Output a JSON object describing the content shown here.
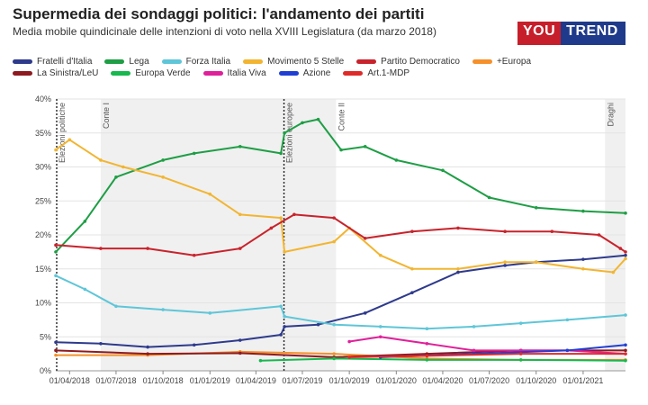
{
  "header": {
    "title": "Supermedia dei sondaggi politici: l'andamento dei partiti",
    "subtitle": "Media mobile quindicinale delle intenzioni di voto nella XVIII Legislatura (da marzo 2018)",
    "logo_you": "YOU",
    "logo_trend": "TREND"
  },
  "chart_data": {
    "type": "line",
    "xlabel": "",
    "ylabel": "",
    "ylim": [
      0,
      40
    ],
    "xlim": [
      "2018-03-05",
      "2021-03-25"
    ],
    "grid": true,
    "legend": "top",
    "y_ticks": [
      "0%",
      "5%",
      "10%",
      "15%",
      "20%",
      "25%",
      "30%",
      "35%",
      "40%"
    ],
    "x_ticks": [
      {
        "label": "01/04/2018",
        "date": "2018-04-01"
      },
      {
        "label": "01/07/2018",
        "date": "2018-07-01"
      },
      {
        "label": "01/10/2018",
        "date": "2018-10-01"
      },
      {
        "label": "01/01/2019",
        "date": "2019-01-01"
      },
      {
        "label": "01/04/2019",
        "date": "2019-04-01"
      },
      {
        "label": "01/07/2019",
        "date": "2019-07-01"
      },
      {
        "label": "01/10/2019",
        "date": "2019-10-01"
      },
      {
        "label": "01/01/2020",
        "date": "2020-01-01"
      },
      {
        "label": "01/04/2020",
        "date": "2020-04-01"
      },
      {
        "label": "01/07/2020",
        "date": "2020-07-01"
      },
      {
        "label": "01/10/2020",
        "date": "2020-10-01"
      },
      {
        "label": "01/01/2021",
        "date": "2021-01-01"
      }
    ],
    "periods": [
      {
        "label": "Conte I",
        "start": "2018-06-01",
        "end": "2019-09-05",
        "shaded": true
      },
      {
        "label": "Conte II",
        "start": "2019-09-05",
        "end": "2021-02-13",
        "shaded": false
      },
      {
        "label": "Draghi",
        "start": "2021-02-13",
        "end": "2021-03-25",
        "shaded": true
      }
    ],
    "events": [
      {
        "label": "Elezioni politiche",
        "date": "2018-03-04"
      },
      {
        "label": "Elezioni europee",
        "date": "2019-05-26"
      }
    ],
    "series": [
      {
        "name": "Fratelli d'Italia",
        "color": "#2e3a8c",
        "x": [
          "2018-03-05",
          "2018-06-01",
          "2018-09-01",
          "2018-12-01",
          "2019-03-01",
          "2019-05-20",
          "2019-05-27",
          "2019-08-01",
          "2019-11-01",
          "2020-02-01",
          "2020-05-01",
          "2020-08-01",
          "2020-10-01",
          "2021-01-01",
          "2021-03-25"
        ],
        "values": [
          4.2,
          4.0,
          3.5,
          3.8,
          4.5,
          5.3,
          6.5,
          6.8,
          8.5,
          11.5,
          14.5,
          15.5,
          16.0,
          16.4,
          17.0
        ]
      },
      {
        "name": "Lega",
        "color": "#1e9e45",
        "x": [
          "2018-03-05",
          "2018-05-01",
          "2018-07-01",
          "2018-10-01",
          "2018-12-01",
          "2019-03-01",
          "2019-05-20",
          "2019-05-27",
          "2019-07-01",
          "2019-08-01",
          "2019-09-15",
          "2019-11-01",
          "2020-01-01",
          "2020-04-01",
          "2020-07-01",
          "2020-10-01",
          "2021-01-01",
          "2021-03-25"
        ],
        "values": [
          17.5,
          22.0,
          28.5,
          31.0,
          32.0,
          33.0,
          32.0,
          35.0,
          36.5,
          37.0,
          32.5,
          33.0,
          31.0,
          29.5,
          25.5,
          24.0,
          23.5,
          23.2
        ]
      },
      {
        "name": "Forza Italia",
        "color": "#5ec6d8",
        "x": [
          "2018-03-05",
          "2018-05-01",
          "2018-07-01",
          "2018-10-01",
          "2019-01-01",
          "2019-05-20",
          "2019-05-27",
          "2019-09-01",
          "2019-12-01",
          "2020-03-01",
          "2020-06-01",
          "2020-09-01",
          "2020-12-01",
          "2021-03-25"
        ],
        "values": [
          14.0,
          12.0,
          9.5,
          9.0,
          8.5,
          9.5,
          8.0,
          6.8,
          6.5,
          6.2,
          6.5,
          7.0,
          7.5,
          8.2
        ]
      },
      {
        "name": "Movimento 5 Stelle",
        "color": "#f2b531",
        "x": [
          "2018-03-05",
          "2018-04-01",
          "2018-06-01",
          "2018-07-15",
          "2018-10-01",
          "2019-01-01",
          "2019-03-01",
          "2019-05-20",
          "2019-05-27",
          "2019-09-01",
          "2019-10-01",
          "2019-12-01",
          "2020-02-01",
          "2020-05-01",
          "2020-08-01",
          "2020-10-01",
          "2021-01-01",
          "2021-03-01",
          "2021-03-25"
        ],
        "values": [
          32.5,
          34.0,
          31.0,
          30.0,
          28.5,
          26.0,
          23.0,
          22.5,
          17.5,
          19.0,
          21.0,
          17.0,
          15.0,
          15.0,
          16.0,
          16.0,
          15.0,
          14.5,
          16.5
        ]
      },
      {
        "name": "Partito Democratico",
        "color": "#c8232c",
        "x": [
          "2018-03-05",
          "2018-06-01",
          "2018-09-01",
          "2018-12-01",
          "2019-03-01",
          "2019-05-01",
          "2019-06-15",
          "2019-09-01",
          "2019-11-01",
          "2020-02-01",
          "2020-05-01",
          "2020-08-01",
          "2020-11-01",
          "2021-02-01",
          "2021-03-15",
          "2021-03-25"
        ],
        "values": [
          18.5,
          18.0,
          18.0,
          17.0,
          18.0,
          21.0,
          23.0,
          22.5,
          19.5,
          20.5,
          21.0,
          20.5,
          20.5,
          20.0,
          18.0,
          17.5
        ]
      },
      {
        "name": "+Europa",
        "color": "#f5902a",
        "x": [
          "2018-03-05",
          "2018-09-01",
          "2019-03-01",
          "2019-09-01",
          "2020-03-01",
          "2020-09-01",
          "2021-03-25"
        ],
        "values": [
          2.3,
          2.3,
          2.8,
          2.5,
          1.8,
          1.6,
          1.6
        ]
      },
      {
        "name": "La Sinistra/LeU",
        "color": "#8e1a20",
        "x": [
          "2018-03-05",
          "2018-09-01",
          "2019-03-01",
          "2019-09-01",
          "2020-03-01",
          "2020-09-01",
          "2021-03-25"
        ],
        "values": [
          3.0,
          2.5,
          2.6,
          2.0,
          2.5,
          3.0,
          3.0
        ]
      },
      {
        "name": "Europa Verde",
        "color": "#17b84e",
        "x": [
          "2019-04-10",
          "2019-09-01",
          "2020-03-01",
          "2020-09-01",
          "2021-03-25"
        ],
        "values": [
          1.5,
          1.8,
          1.6,
          1.6,
          1.5
        ]
      },
      {
        "name": "Italia Viva",
        "color": "#e0209a",
        "x": [
          "2019-10-01",
          "2019-12-01",
          "2020-03-01",
          "2020-06-01",
          "2020-09-01",
          "2020-12-01",
          "2021-03-25"
        ],
        "values": [
          4.3,
          5.0,
          4.0,
          3.0,
          3.0,
          3.0,
          2.5
        ]
      },
      {
        "name": "Azione",
        "color": "#1f3fd4",
        "x": [
          "2019-12-01",
          "2020-06-01",
          "2020-12-01",
          "2021-03-25"
        ],
        "values": [
          2.0,
          2.5,
          3.0,
          3.8
        ]
      },
      {
        "name": "Art.1-MDP",
        "color": "#e02a2a",
        "x": [
          "2019-10-01",
          "2020-03-01",
          "2020-09-01",
          "2021-03-25"
        ],
        "values": [
          2.0,
          2.2,
          2.5,
          2.5
        ]
      }
    ]
  }
}
